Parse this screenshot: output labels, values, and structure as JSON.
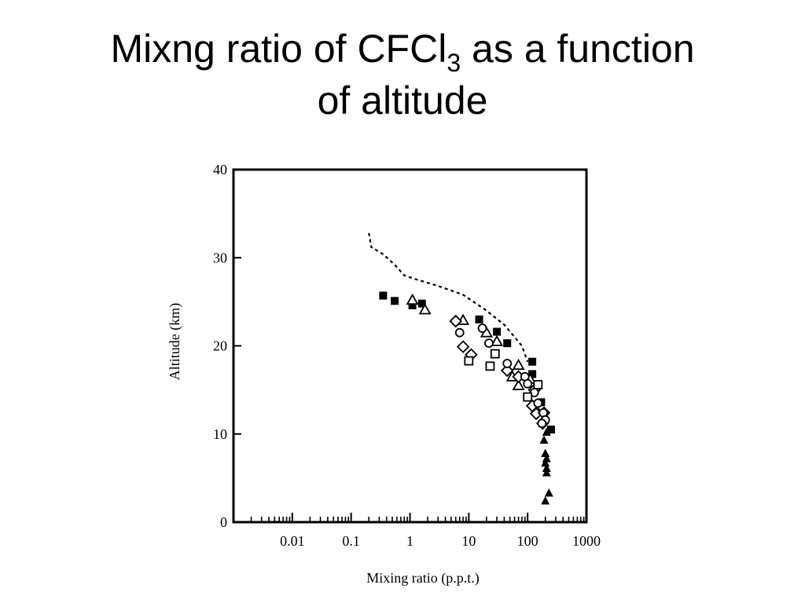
{
  "slide": {
    "title_line1_pre": "Mixng ratio of CFCl",
    "title_sub": "3",
    "title_line1_post": " as a function",
    "title_line2": "of altitude"
  },
  "chart_data": {
    "type": "scatter",
    "title": "",
    "xlabel": "Mixing ratio (p.p.t.)",
    "ylabel": "Altitude (km)",
    "xscale": "log",
    "xlim": [
      0.001,
      1000
    ],
    "ylim": [
      0,
      40
    ],
    "xticks": [
      {
        "value": 0.01,
        "label": "0.01"
      },
      {
        "value": 0.1,
        "label": "0.1"
      },
      {
        "value": 1,
        "label": "1"
      },
      {
        "value": 10,
        "label": "10"
      },
      {
        "value": 100,
        "label": "100"
      },
      {
        "value": 1000,
        "label": "1000"
      }
    ],
    "yticks": [
      {
        "value": 0,
        "label": "0"
      },
      {
        "value": 10,
        "label": "10"
      },
      {
        "value": 20,
        "label": "20"
      },
      {
        "value": 30,
        "label": "30"
      },
      {
        "value": 40,
        "label": "40"
      }
    ],
    "grid": false,
    "legend": "none",
    "series": [
      {
        "marker": "filled-square",
        "points": [
          [
            0.35,
            25.7
          ],
          [
            0.55,
            25.1
          ],
          [
            1.1,
            24.6
          ],
          [
            1.6,
            24.8
          ],
          [
            15,
            23
          ],
          [
            30,
            21.6
          ],
          [
            45,
            20.3
          ],
          [
            120,
            18.2
          ],
          [
            120,
            16.8
          ],
          [
            170,
            13.6
          ],
          [
            250,
            10.5
          ]
        ]
      },
      {
        "marker": "open-triangle",
        "points": [
          [
            1.1,
            25.2
          ],
          [
            1.8,
            24.1
          ],
          [
            8,
            22.9
          ],
          [
            20,
            21.5
          ],
          [
            30,
            20.5
          ],
          [
            70,
            17.8
          ],
          [
            55,
            16.5
          ],
          [
            70,
            15.5
          ],
          [
            110,
            16.2
          ],
          [
            140,
            12.8
          ]
        ]
      },
      {
        "marker": "open-diamond",
        "points": [
          [
            6,
            22.8
          ],
          [
            8,
            19.9
          ],
          [
            11,
            19
          ],
          [
            45,
            17.2
          ],
          [
            70,
            16.5
          ],
          [
            130,
            15
          ],
          [
            120,
            13.2
          ],
          [
            140,
            12.3
          ],
          [
            180,
            11.2
          ],
          [
            190,
            12.4
          ]
        ]
      },
      {
        "marker": "open-circle",
        "points": [
          [
            7,
            21.5
          ],
          [
            17,
            22
          ],
          [
            22,
            20.3
          ],
          [
            45,
            18
          ],
          [
            90,
            16.5
          ],
          [
            100,
            15.7
          ],
          [
            130,
            14.7
          ],
          [
            150,
            13.5
          ],
          [
            185,
            12.4
          ],
          [
            200,
            11.6
          ],
          [
            175,
            11.2
          ]
        ]
      },
      {
        "marker": "open-square",
        "points": [
          [
            10,
            18.3
          ],
          [
            23,
            17.7
          ],
          [
            28,
            19.1
          ],
          [
            150,
            15.6
          ],
          [
            100,
            14.2
          ]
        ]
      },
      {
        "marker": "filled-triangle",
        "points": [
          [
            210,
            10.2
          ],
          [
            190,
            9.3
          ],
          [
            200,
            7.8
          ],
          [
            210,
            7.2
          ],
          [
            200,
            6.7
          ],
          [
            210,
            6.1
          ],
          [
            210,
            5.6
          ],
          [
            230,
            3.3
          ],
          [
            200,
            2.4
          ]
        ]
      },
      {
        "type": "line",
        "style": "dashed",
        "points": [
          [
            0.2,
            32.8
          ],
          [
            0.22,
            31.2
          ],
          [
            0.35,
            30.4
          ],
          [
            0.55,
            29.2
          ],
          [
            0.8,
            28
          ],
          [
            1.2,
            27.6
          ],
          [
            3,
            26.8
          ],
          [
            8,
            25.8
          ],
          [
            20,
            24
          ],
          [
            40,
            22.4
          ],
          [
            60,
            21
          ],
          [
            80,
            20
          ],
          [
            100,
            18.2
          ]
        ]
      }
    ]
  }
}
